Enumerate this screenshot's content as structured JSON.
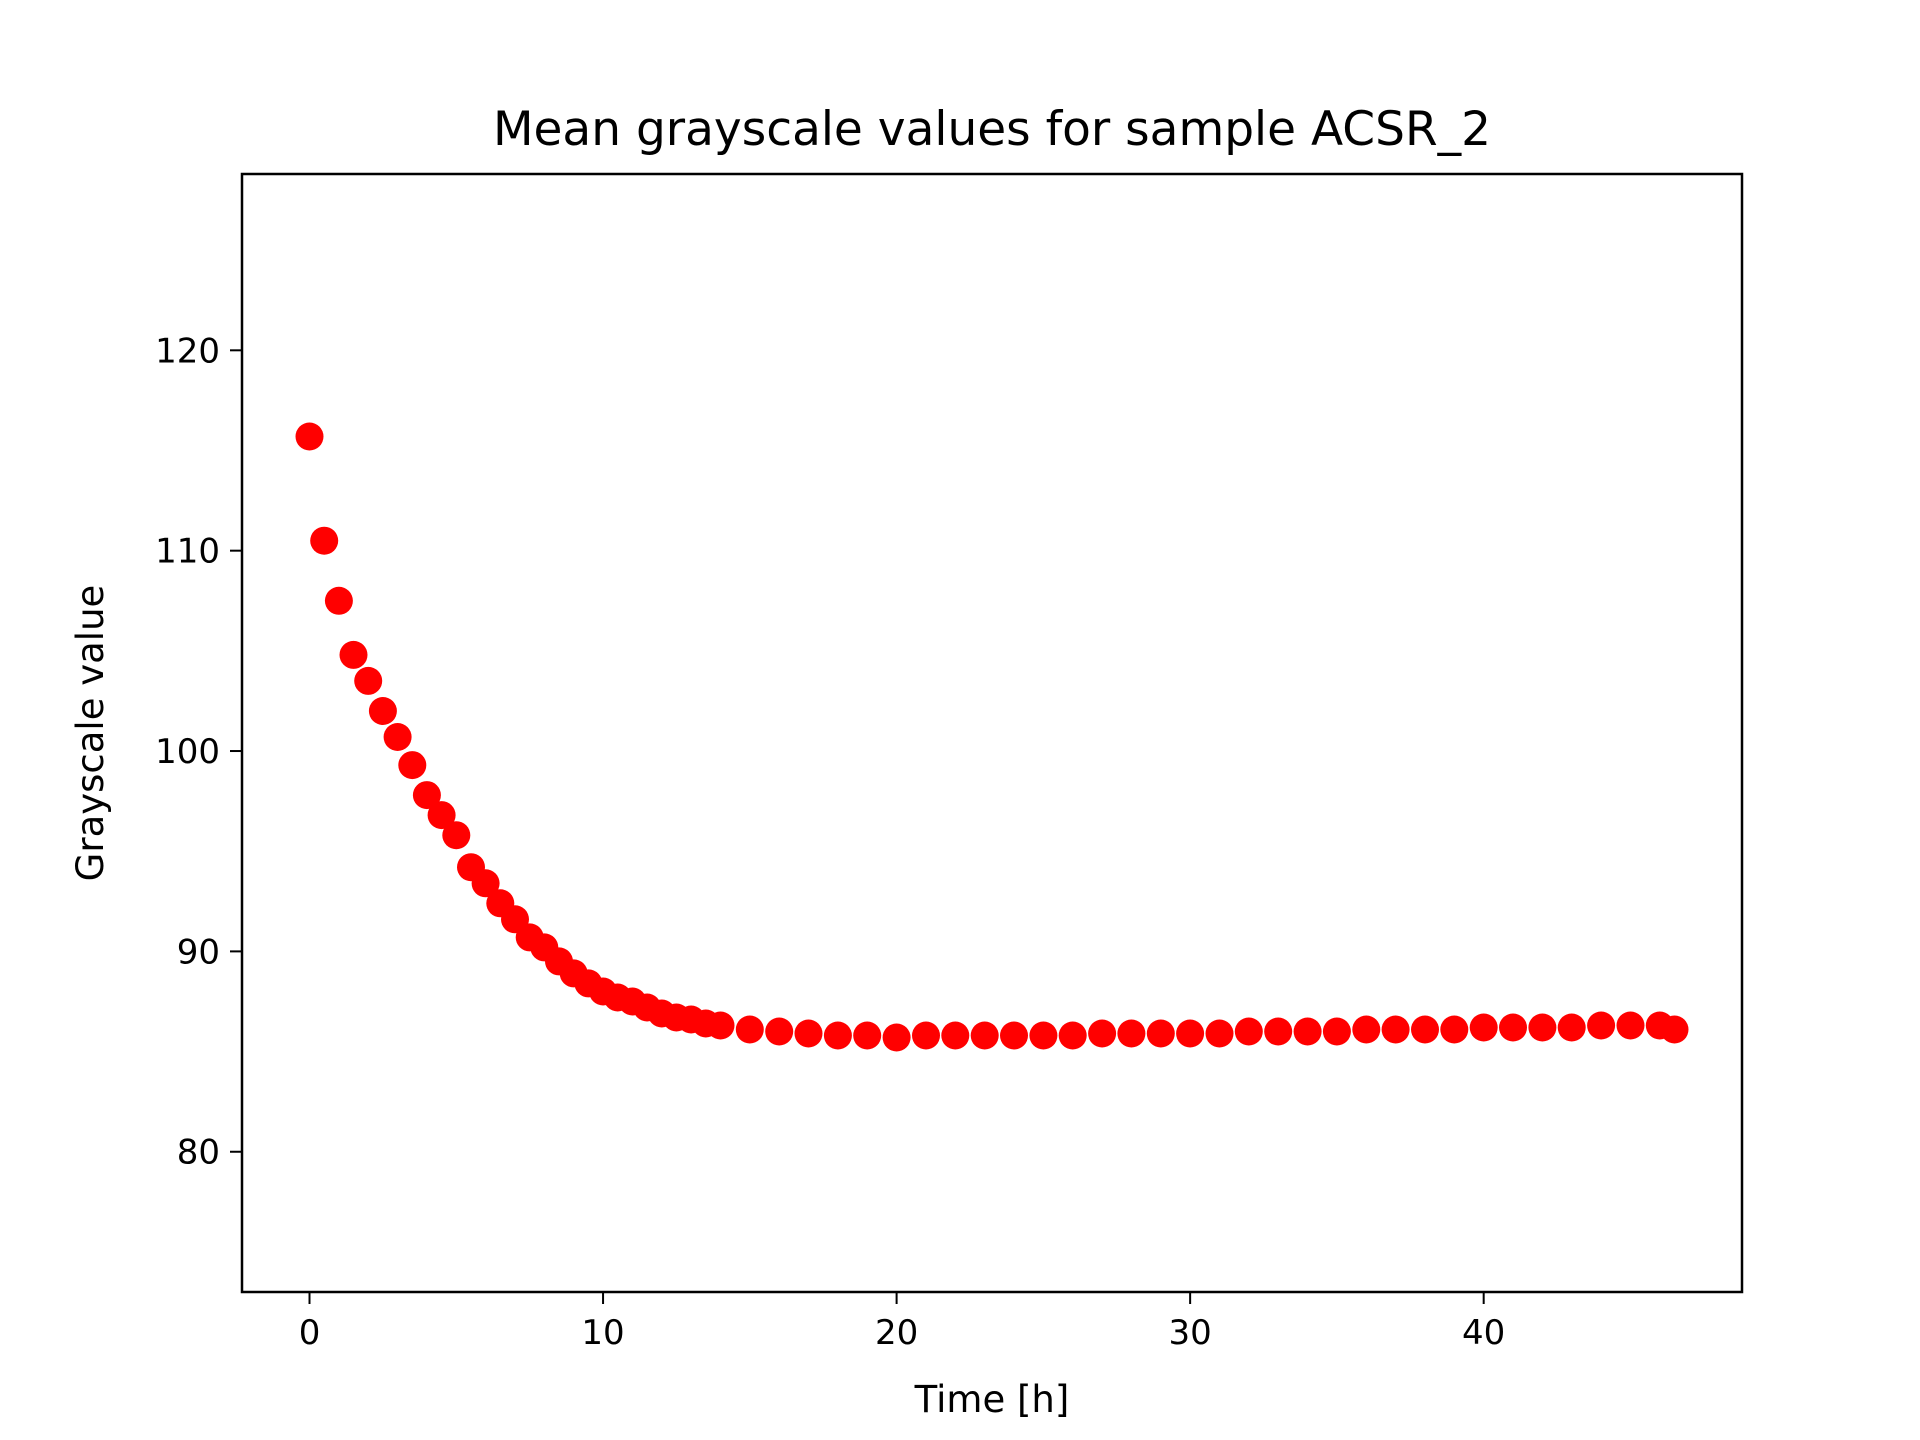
{
  "chart_data": {
    "type": "scatter",
    "title": "Mean grayscale values for sample ACSR_2",
    "xlabel": "Time [h]",
    "ylabel": "Grayscale value",
    "xlim": [
      -2.3,
      48.8
    ],
    "ylim": [
      73.0,
      128.8
    ],
    "xticks": [
      0,
      10,
      20,
      30,
      40
    ],
    "yticks": [
      80,
      90,
      100,
      110,
      120
    ],
    "grid": false,
    "legend": "none",
    "marker_color": "#ff0000",
    "series": [
      {
        "name": "ACSR_2",
        "x": [
          0,
          0.5,
          1,
          1.5,
          2,
          2.5,
          3,
          3.5,
          4,
          4.5,
          5,
          5.5,
          6,
          6.5,
          7,
          7.5,
          8,
          8.5,
          9,
          9.5,
          10,
          10.5,
          11,
          11.5,
          12,
          12.5,
          13,
          13.5,
          14,
          15,
          16,
          17,
          18,
          19,
          20,
          21,
          22,
          23,
          24,
          25,
          26,
          27,
          28,
          29,
          30,
          31,
          32,
          33,
          34,
          35,
          36,
          37,
          38,
          39,
          40,
          41,
          42,
          43,
          44,
          45,
          46,
          46.5
        ],
        "y": [
          115.7,
          110.5,
          107.5,
          104.8,
          103.5,
          102.0,
          100.7,
          99.3,
          97.8,
          96.8,
          95.8,
          94.2,
          93.4,
          92.4,
          91.6,
          90.7,
          90.2,
          89.5,
          88.9,
          88.4,
          88.0,
          87.7,
          87.5,
          87.2,
          86.9,
          86.7,
          86.6,
          86.4,
          86.3,
          86.1,
          86.0,
          85.9,
          85.8,
          85.8,
          85.7,
          85.8,
          85.8,
          85.8,
          85.8,
          85.8,
          85.8,
          85.9,
          85.9,
          85.9,
          85.9,
          85.9,
          86.0,
          86.0,
          86.0,
          86.0,
          86.1,
          86.1,
          86.1,
          86.1,
          86.2,
          86.2,
          86.2,
          86.2,
          86.3,
          86.3,
          86.3,
          86.1
        ]
      }
    ]
  }
}
